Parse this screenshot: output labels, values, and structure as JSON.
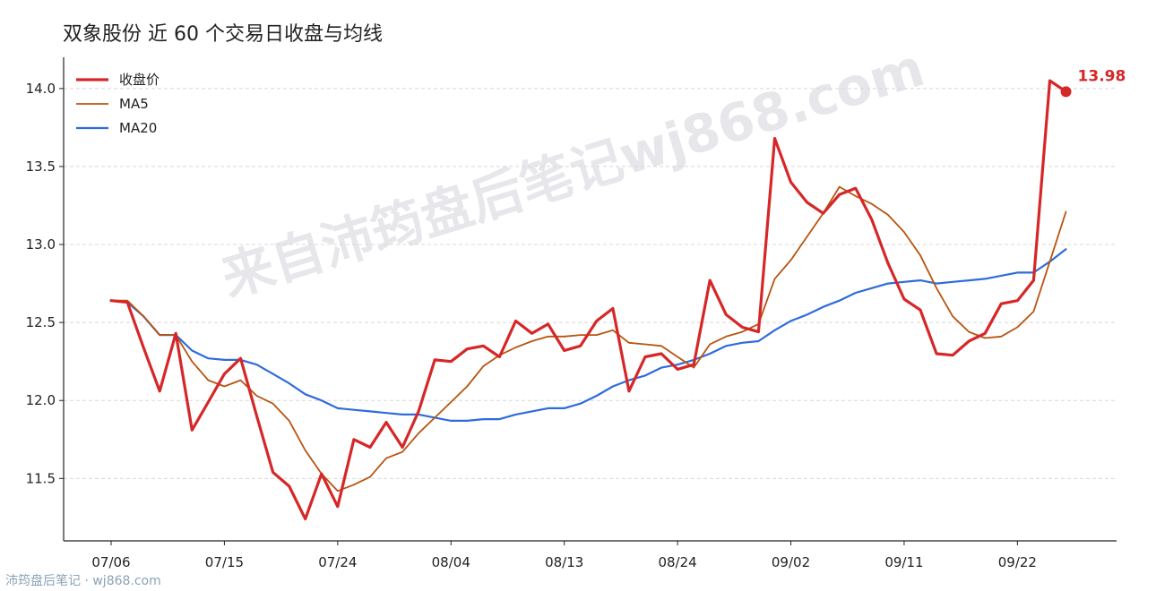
{
  "title": "双象股份 近 60 个交易日收盘与均线",
  "watermark": "来自沛筠盘后笔记wj868.com",
  "footer": "沛筠盘后笔记 · wj868.com",
  "chart_data": {
    "type": "line",
    "x_tick_labels": [
      "07/06",
      "07/15",
      "07/24",
      "08/04",
      "08/13",
      "08/24",
      "09/02",
      "09/11",
      "09/22"
    ],
    "x_tick_index": [
      0,
      7,
      14,
      21,
      28,
      35,
      42,
      49,
      56
    ],
    "ylim": [
      11.1,
      14.2
    ],
    "yticks": [
      11.5,
      12.0,
      12.5,
      13.0,
      13.5,
      14.0
    ],
    "grid": "horizontal",
    "legend_position": "top-left",
    "last_value_label": "13.98",
    "colors": {
      "close": "#d62728",
      "ma5": "#b8540f",
      "ma20": "#2f6bdb",
      "axis": "#222222",
      "watermark": "#d4d4dc"
    },
    "series": [
      {
        "name": "收盘价",
        "key": "close",
        "values": [
          12.64,
          12.63,
          12.34,
          12.06,
          12.43,
          11.81,
          11.99,
          12.17,
          12.27,
          11.9,
          11.54,
          11.45,
          11.24,
          11.53,
          11.32,
          11.75,
          11.7,
          11.86,
          11.7,
          11.93,
          12.26,
          12.25,
          12.33,
          12.35,
          12.28,
          12.51,
          12.43,
          12.49,
          12.32,
          12.35,
          12.51,
          12.59,
          12.06,
          12.28,
          12.3,
          12.2,
          12.23,
          12.77,
          12.55,
          12.47,
          12.44,
          13.68,
          13.4,
          13.27,
          13.2,
          13.32,
          13.36,
          13.16,
          12.88,
          12.65,
          12.58,
          12.3,
          12.29,
          12.38,
          12.43,
          12.62,
          12.64,
          12.77,
          14.05,
          13.98
        ]
      },
      {
        "name": "MA5",
        "key": "ma5",
        "values": [
          12.64,
          12.64,
          12.54,
          12.42,
          12.42,
          12.25,
          12.13,
          12.09,
          12.13,
          12.03,
          11.98,
          11.87,
          11.68,
          11.53,
          11.42,
          11.46,
          11.51,
          11.63,
          11.67,
          11.79,
          11.89,
          11.99,
          12.09,
          12.22,
          12.29,
          12.34,
          12.38,
          12.41,
          12.41,
          12.42,
          12.42,
          12.45,
          12.37,
          12.36,
          12.35,
          12.28,
          12.21,
          12.36,
          12.41,
          12.44,
          12.49,
          12.78,
          12.9,
          13.05,
          13.2,
          13.37,
          13.31,
          13.26,
          13.19,
          13.08,
          12.93,
          12.72,
          12.54,
          12.44,
          12.4,
          12.41,
          12.47,
          12.57,
          12.89,
          13.21
        ]
      },
      {
        "name": "MA20",
        "key": "ma20",
        "values": [
          12.64,
          12.63,
          12.54,
          12.42,
          12.42,
          12.32,
          12.27,
          12.26,
          12.26,
          12.23,
          12.17,
          12.11,
          12.04,
          12.0,
          11.95,
          11.94,
          11.93,
          11.92,
          11.91,
          11.91,
          11.89,
          11.87,
          11.87,
          11.88,
          11.88,
          11.91,
          11.93,
          11.95,
          11.95,
          11.98,
          12.03,
          12.09,
          12.13,
          12.16,
          12.21,
          12.23,
          12.26,
          12.3,
          12.35,
          12.37,
          12.38,
          12.45,
          12.51,
          12.55,
          12.6,
          12.64,
          12.69,
          12.72,
          12.75,
          12.76,
          12.77,
          12.75,
          12.76,
          12.77,
          12.78,
          12.8,
          12.82,
          12.82,
          12.89,
          12.97
        ]
      }
    ]
  }
}
